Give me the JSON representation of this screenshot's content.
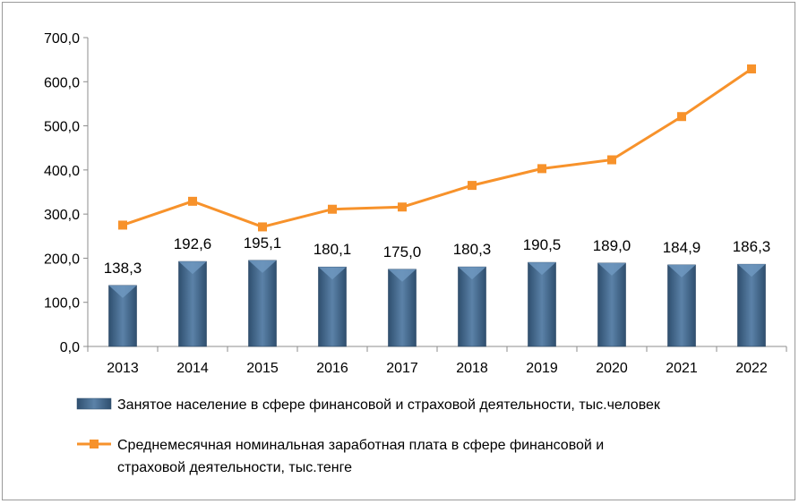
{
  "chart_data": {
    "type": "bar+line",
    "categories": [
      "2013",
      "2014",
      "2015",
      "2016",
      "2017",
      "2018",
      "2019",
      "2020",
      "2021",
      "2022"
    ],
    "ylim": [
      0,
      700
    ],
    "yticks": [
      "0,0",
      "100,0",
      "200,0",
      "300,0",
      "400,0",
      "500,0",
      "600,0",
      "700,0"
    ],
    "grid": false,
    "legend_position": "bottom",
    "series": [
      {
        "name": "Занятое население в сфере финансовой и страховой деятельности, тыс.человек",
        "kind": "bar",
        "color": "#4a6f93",
        "values": [
          138.3,
          192.6,
          195.1,
          180.1,
          175.0,
          180.3,
          190.5,
          189.0,
          184.9,
          186.3
        ],
        "labels": [
          "138,3",
          "192,6",
          "195,1",
          "180,1",
          "175,0",
          "180,3",
          "190,5",
          "189,0",
          "184,9",
          "186,3"
        ]
      },
      {
        "name_lines": [
          "Среднемесячная номинальная заработная плата в сфере финансовой и",
          "страховой деятельности, тыс.тенге"
        ],
        "kind": "line",
        "color": "#f7922b",
        "values": [
          275,
          329,
          271,
          311,
          316,
          365,
          403,
          423,
          521,
          629
        ]
      }
    ]
  }
}
